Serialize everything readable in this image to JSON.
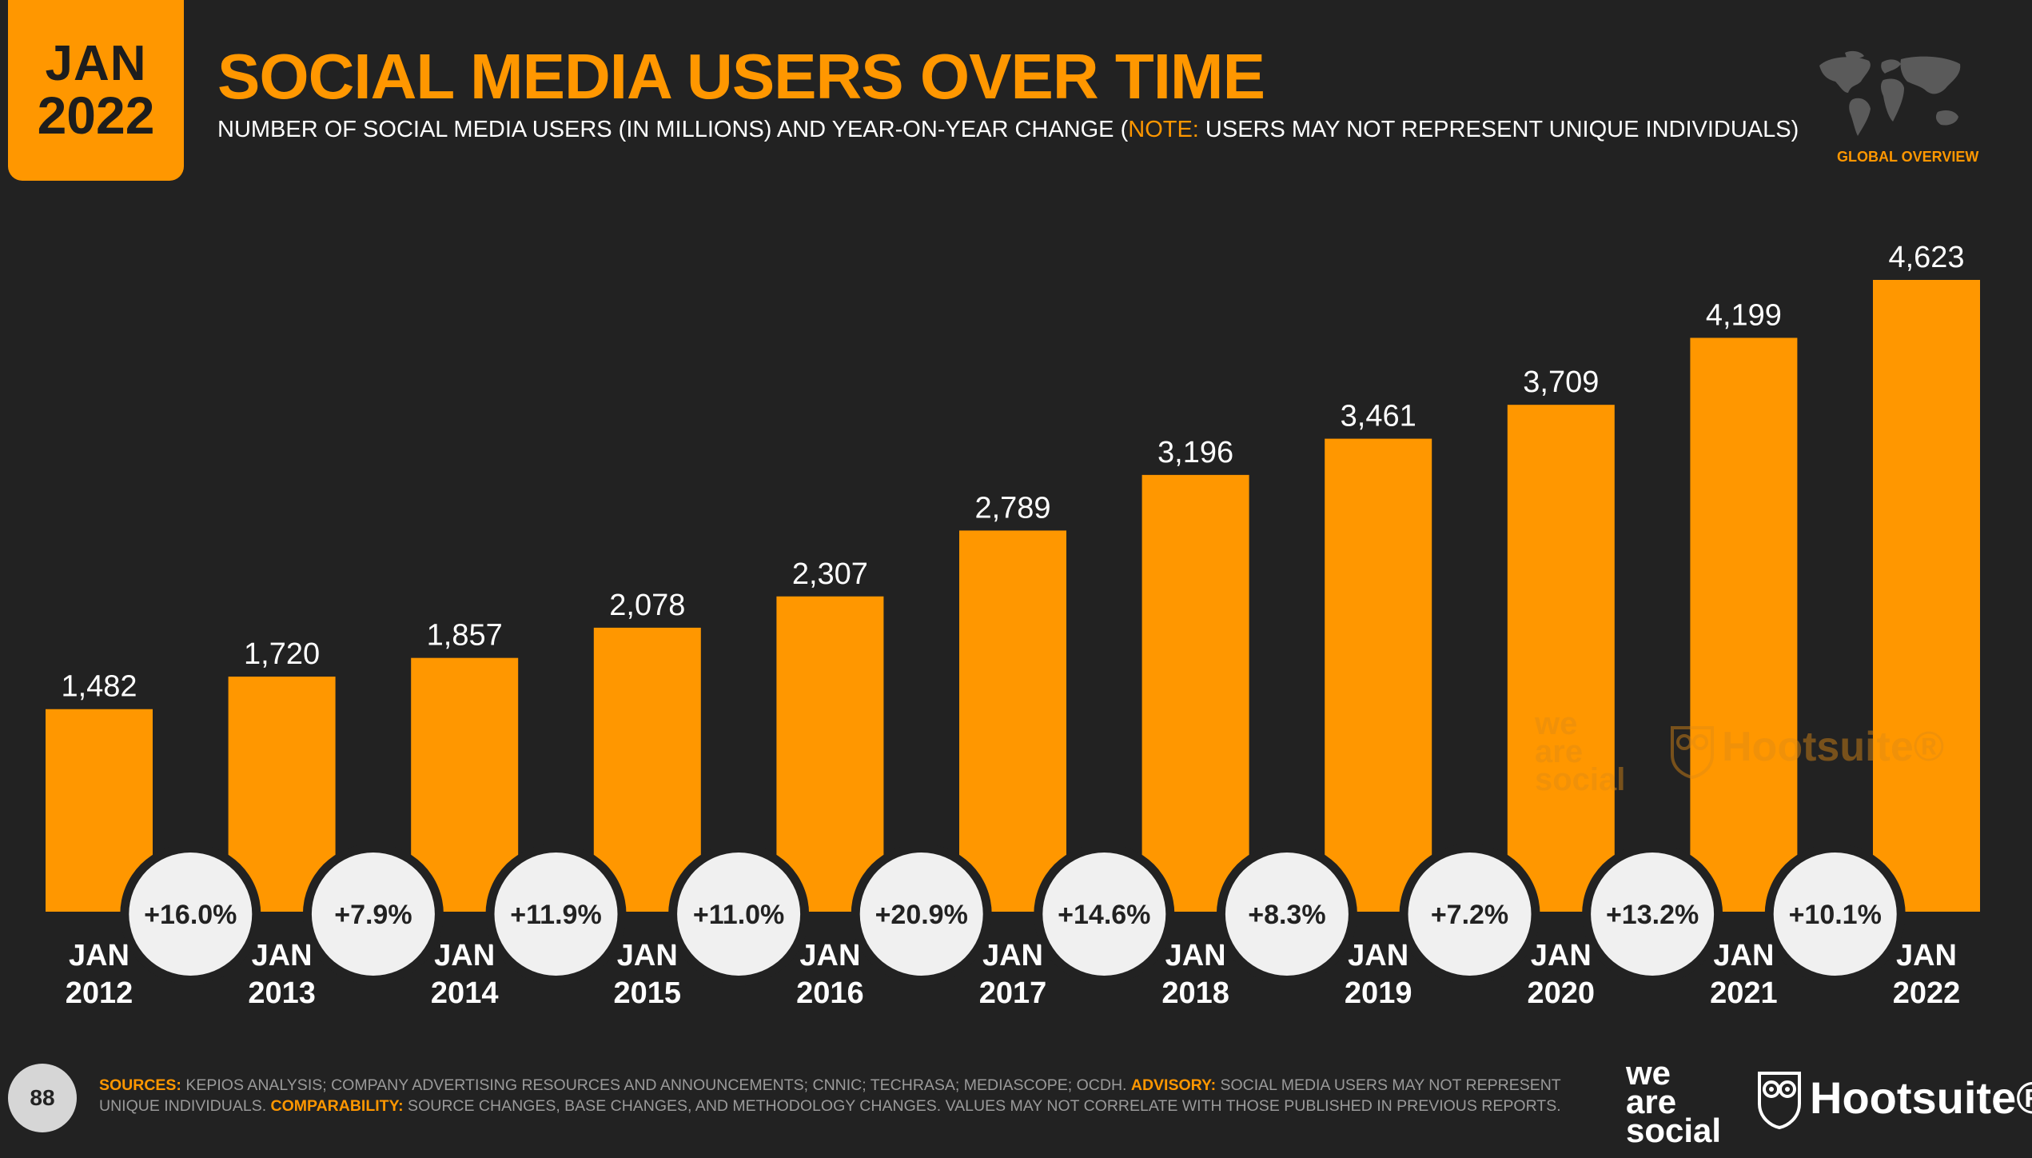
{
  "header": {
    "badge_month": "JAN",
    "badge_year": "2022",
    "title": "SOCIAL MEDIA USERS OVER TIME",
    "subtitle_main": "NUMBER OF SOCIAL MEDIA USERS (IN MILLIONS) AND YEAR-ON-YEAR CHANGE (",
    "subtitle_note_label": "NOTE:",
    "subtitle_note_text": " USERS MAY NOT REPRESENT UNIQUE INDIVIDUALS)",
    "region_label": "GLOBAL OVERVIEW",
    "map_icon": "world-map-icon"
  },
  "chart_data": {
    "type": "bar",
    "title": "SOCIAL MEDIA USERS OVER TIME",
    "xlabel": "",
    "ylabel": "",
    "categories": [
      [
        "JAN",
        "2012"
      ],
      [
        "JAN",
        "2013"
      ],
      [
        "JAN",
        "2014"
      ],
      [
        "JAN",
        "2015"
      ],
      [
        "JAN",
        "2016"
      ],
      [
        "JAN",
        "2017"
      ],
      [
        "JAN",
        "2018"
      ],
      [
        "JAN",
        "2019"
      ],
      [
        "JAN",
        "2020"
      ],
      [
        "JAN",
        "2021"
      ],
      [
        "JAN",
        "2022"
      ]
    ],
    "values": [
      1482,
      1720,
      1857,
      2078,
      2307,
      2789,
      3196,
      3461,
      3709,
      4199,
      4623
    ],
    "value_labels": [
      "1,482",
      "1,720",
      "1,857",
      "2,078",
      "2,307",
      "2,789",
      "3,196",
      "3,461",
      "3,709",
      "4,199",
      "4,623"
    ],
    "yoy_change": [
      "+16.0%",
      "+7.9%",
      "+11.9%",
      "+11.0%",
      "+20.9%",
      "+14.6%",
      "+8.3%",
      "+7.2%",
      "+13.2%",
      "+10.1%"
    ],
    "ylim": [
      0,
      4623
    ],
    "grid": false,
    "bar_color": "#ff9700",
    "bubble_color": "#f0f0f0",
    "background_color": "#222222"
  },
  "watermark": {
    "we_are_social": [
      "we",
      "are",
      "social"
    ],
    "hootsuite": "Hootsuite®"
  },
  "footer": {
    "page_number": "88",
    "sources_label": "SOURCES:",
    "sources_text": " KEPIOS ANALYSIS; COMPANY ADVERTISING RESOURCES AND ANNOUNCEMENTS; CNNIC; TECHRASA; MEDIASCOPE; OCDH. ",
    "advisory_label": "ADVISORY:",
    "advisory_text": " SOCIAL MEDIA USERS MAY NOT REPRESENT UNIQUE INDIVIDUALS. ",
    "comparability_label": "COMPARABILITY:",
    "comparability_text": " SOURCE CHANGES, BASE CHANGES, AND METHODOLOGY CHANGES. VALUES MAY NOT CORRELATE WITH THOSE PUBLISHED IN PREVIOUS REPORTS.",
    "logo_we_are_social": [
      "we",
      "are",
      "social"
    ],
    "logo_hootsuite": "Hootsuite®",
    "logo_hootsuite_icon": "hootsuite-owl-icon"
  }
}
